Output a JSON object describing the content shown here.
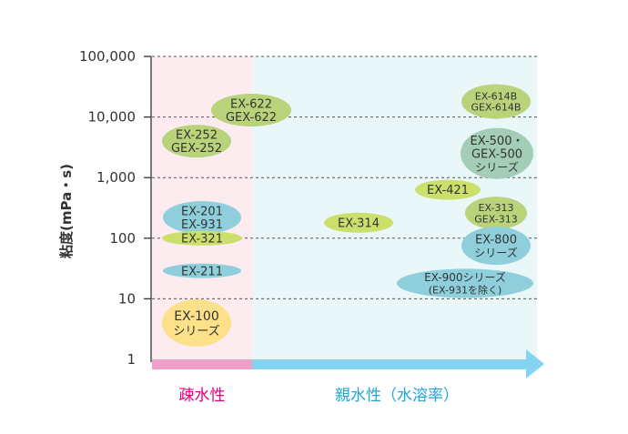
{
  "chart_data": {
    "type": "bubble-map",
    "ylabel": "粘度(mPa・s)",
    "yscale": "log",
    "ylim": [
      1,
      100000
    ],
    "yticks": [
      {
        "value": 1,
        "label": "1"
      },
      {
        "value": 10,
        "label": "10"
      },
      {
        "value": 100,
        "label": "100"
      },
      {
        "value": 1000,
        "label": "1,000"
      },
      {
        "value": 10000,
        "label": "10,000"
      },
      {
        "value": 100000,
        "label": "100,000"
      }
    ],
    "grid": "dashed horizontal at each decade",
    "x_axis": {
      "type": "categorical-direction",
      "regions": [
        {
          "label": "疎水性",
          "color": "#e6007e",
          "bg": "#fcecef",
          "axis_color": "#f0a0c8"
        },
        {
          "label": "親水性（水溶率）",
          "color": "#1fa5d6",
          "bg": "#e9f7f8",
          "axis_color": "#84d3f2"
        }
      ]
    },
    "items": [
      {
        "lines": [
          "EX-622",
          "GEX-622"
        ],
        "region": 0,
        "y": 13000,
        "color": "#b9d37a"
      },
      {
        "lines": [
          "EX-252",
          "GEX-252"
        ],
        "region": 0,
        "y": 4000,
        "color": "#b9d37a"
      },
      {
        "lines": [
          "EX-201",
          "EX-931"
        ],
        "region": 0,
        "y": 220,
        "color": "#8fcfdc"
      },
      {
        "lines": [
          "EX-321"
        ],
        "region": 0,
        "y": 100,
        "color": "#cbe06b"
      },
      {
        "lines": [
          "EX-211"
        ],
        "region": 0,
        "y": 29,
        "color": "#8fcfdc"
      },
      {
        "lines": [
          "EX-100",
          "シリーズ"
        ],
        "region": 0,
        "y": 4,
        "color": "#fde08a"
      },
      {
        "lines": [
          "EX-314"
        ],
        "region": 1,
        "y": 180,
        "color": "#cbe06b"
      },
      {
        "lines": [
          "EX-421"
        ],
        "region": 1,
        "y": 630,
        "color": "#cbe06b"
      },
      {
        "lines": [
          "EX-614B",
          "GEX-614B"
        ],
        "region": 1,
        "y": 18000,
        "color": "#b9d37a"
      },
      {
        "lines": [
          "EX-500・",
          "GEX-500",
          "シリーズ"
        ],
        "region": 1,
        "y": 2500,
        "color": "#a3cdb6"
      },
      {
        "lines": [
          "EX-313",
          "GEX-313"
        ],
        "region": 1,
        "y": 260,
        "color": "#b9d37a"
      },
      {
        "lines": [
          "EX-800",
          "シリーズ"
        ],
        "region": 1,
        "y": 75,
        "color": "#8fcfdc"
      },
      {
        "lines": [
          "EX-900シリーズ",
          "(EX-931を除く)"
        ],
        "region": 1,
        "y": 18,
        "color": "#8fcfdc"
      }
    ]
  }
}
